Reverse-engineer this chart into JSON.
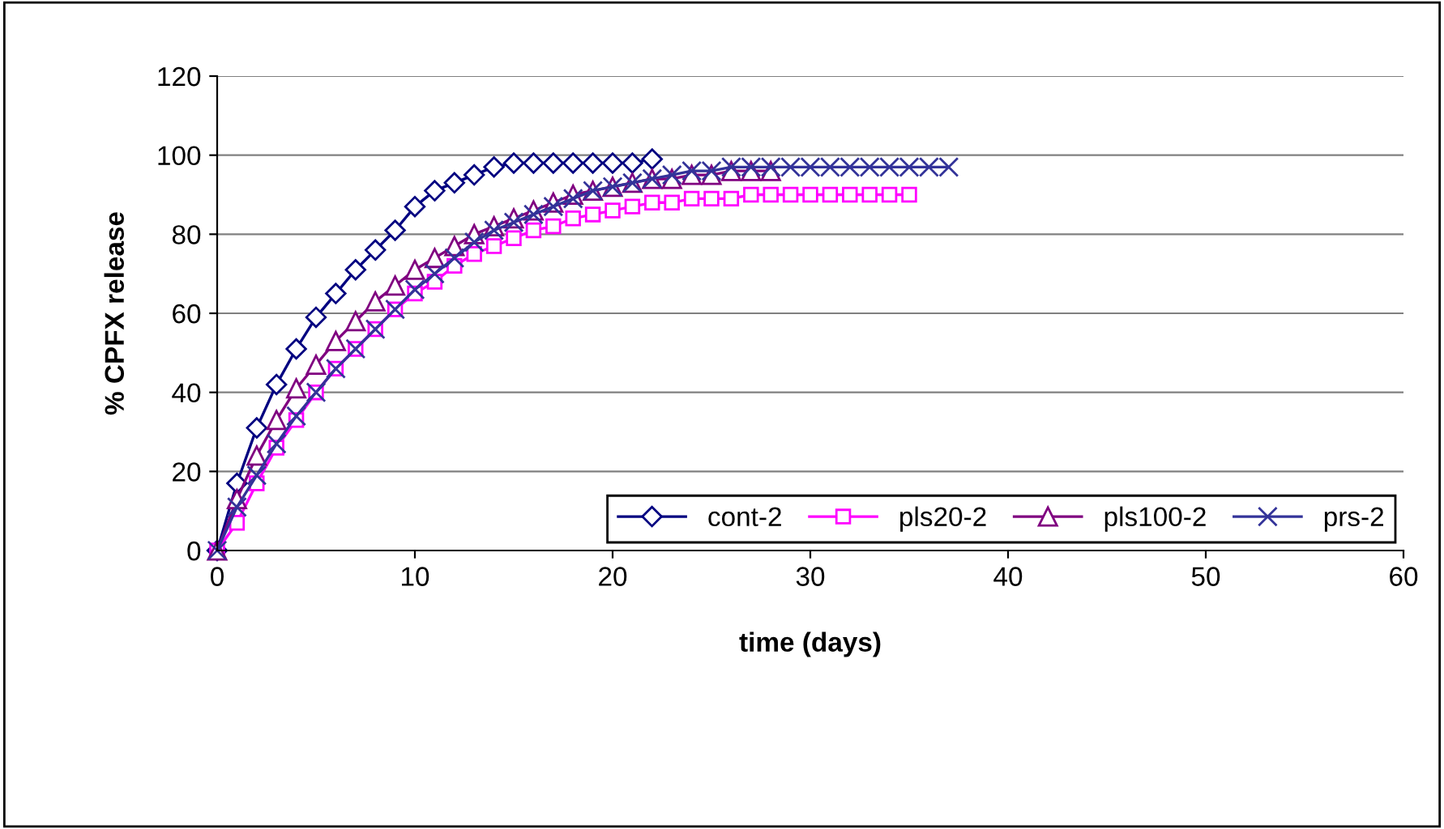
{
  "chart_data": {
    "type": "line",
    "xlabel": "time (days)",
    "ylabel": "% CPFX release",
    "xlim": [
      0,
      60
    ],
    "xticks": [
      0,
      10,
      20,
      30,
      40,
      50,
      60
    ],
    "ylim": [
      0,
      120
    ],
    "yticks": [
      0,
      20,
      40,
      60,
      80,
      100,
      120
    ],
    "grid": "y",
    "legend": "bottom right",
    "line_style": "solid",
    "series": [
      {
        "name": "cont-2",
        "color": "#000080",
        "marker": "diamond",
        "x": [
          0,
          1,
          2,
          3,
          4,
          5,
          6,
          7,
          8,
          9,
          10,
          11,
          12,
          13,
          14,
          15,
          16,
          17,
          18,
          19,
          20,
          21,
          22
        ],
        "values": [
          0,
          17,
          31,
          42,
          51,
          59,
          65,
          71,
          76,
          81,
          87,
          91,
          93,
          95,
          97,
          98,
          98,
          98,
          98,
          98,
          98,
          98,
          99
        ]
      },
      {
        "name": "pls20-2",
        "color": "#ff00ff",
        "marker": "square",
        "x": [
          0,
          1,
          2,
          3,
          4,
          5,
          6,
          7,
          8,
          9,
          10,
          11,
          12,
          13,
          14,
          15,
          16,
          17,
          18,
          19,
          20,
          21,
          22,
          23,
          24,
          25,
          26,
          27,
          28,
          29,
          30,
          31,
          32,
          33,
          34,
          35
        ],
        "values": [
          0,
          7,
          17,
          26,
          33,
          40,
          46,
          51,
          56,
          61,
          65,
          68,
          72,
          75,
          77,
          79,
          81,
          82,
          84,
          85,
          86,
          87,
          88,
          88,
          89,
          89,
          89,
          90,
          90,
          90,
          90,
          90,
          90,
          90,
          90,
          90
        ]
      },
      {
        "name": "pls100-2",
        "color": "#800080",
        "marker": "triangle",
        "x": [
          0,
          1,
          2,
          3,
          4,
          5,
          6,
          7,
          8,
          9,
          10,
          11,
          12,
          13,
          14,
          15,
          16,
          17,
          18,
          19,
          20,
          21,
          22,
          23,
          24,
          25,
          26,
          27,
          28
        ],
        "values": [
          0,
          13,
          24,
          33,
          41,
          47,
          53,
          58,
          63,
          67,
          71,
          74,
          77,
          80,
          82,
          84,
          86,
          88,
          90,
          91,
          92,
          93,
          94,
          94,
          95,
          95,
          96,
          96,
          96
        ]
      },
      {
        "name": "prs-2",
        "color": "#333399",
        "marker": "cross",
        "x": [
          0,
          1,
          2,
          3,
          4,
          5,
          6,
          7,
          8,
          9,
          10,
          11,
          12,
          13,
          14,
          15,
          16,
          17,
          18,
          19,
          20,
          21,
          22,
          23,
          24,
          25,
          26,
          27,
          28,
          29,
          30,
          31,
          32,
          33,
          34,
          35,
          36,
          37
        ],
        "values": [
          0,
          11,
          19,
          27,
          34,
          40,
          46,
          51,
          56,
          61,
          66,
          70,
          74,
          78,
          81,
          83,
          85,
          87,
          89,
          91,
          92,
          93,
          94,
          95,
          96,
          96,
          97,
          97,
          97,
          97,
          97,
          97,
          97,
          97,
          97,
          97,
          97,
          97
        ]
      }
    ]
  }
}
